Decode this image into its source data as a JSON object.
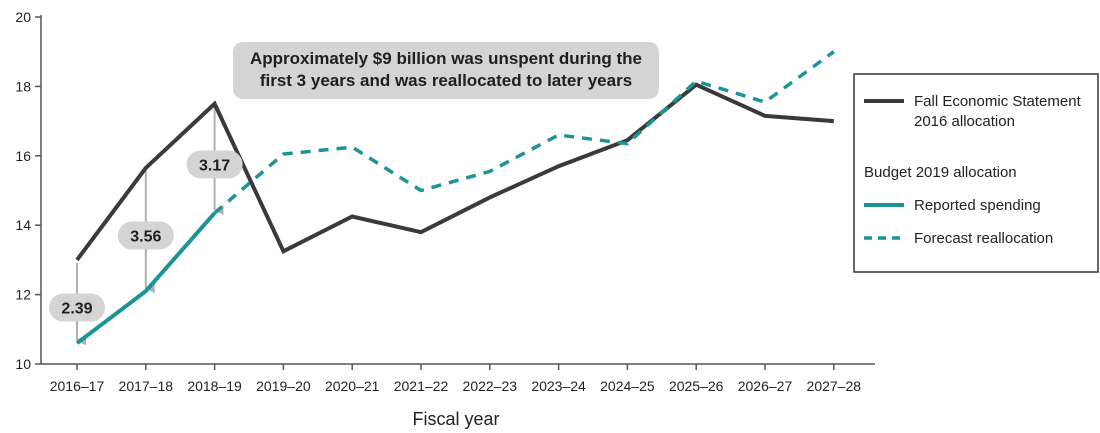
{
  "chart_data": {
    "type": "line",
    "xlabel": "Fiscal year",
    "ylabel": "",
    "ylim": [
      10,
      20
    ],
    "yticks": [
      10,
      12,
      14,
      16,
      18,
      20
    ],
    "categories": [
      "2016–17",
      "2017–18",
      "2018–19",
      "2019–20",
      "2020–21",
      "2021–22",
      "2022–23",
      "2023–24",
      "2024–25",
      "2025–26",
      "2026–27",
      "2027–28"
    ],
    "series": [
      {
        "name": "Fall Economic Statement 2016 allocation",
        "style": "solid",
        "color": "#3a3a3a",
        "values": [
          13.0,
          15.65,
          17.5,
          13.25,
          14.25,
          13.8,
          14.8,
          15.7,
          16.45,
          18.05,
          17.15,
          17.0
        ]
      },
      {
        "name": "Reported spending",
        "style": "solid",
        "color": "#1a9494",
        "values": [
          10.6,
          12.1,
          14.35,
          null,
          null,
          null,
          null,
          null,
          null,
          null,
          null,
          null
        ]
      },
      {
        "name": "Forecast reallocation",
        "style": "dashed",
        "color": "#1a9494",
        "values": [
          null,
          null,
          14.35,
          16.05,
          16.25,
          15.0,
          15.55,
          16.6,
          16.35,
          18.15,
          17.55,
          19.0
        ]
      }
    ],
    "differences": [
      {
        "category": "2016–17",
        "label": "2.39"
      },
      {
        "category": "2017–18",
        "label": "3.56"
      },
      {
        "category": "2018–19",
        "label": "3.17"
      }
    ],
    "annotation": [
      "Approximately $9 billion was unspent during the",
      "first 3 years and was reallocated to later years"
    ],
    "legend": {
      "placement": "right",
      "items": [
        {
          "lines": [
            "Fall Economic Statement",
            "2016 allocation"
          ],
          "swatch": "solid",
          "color": "#3a3a3a"
        },
        {
          "lines": [
            "Budget 2019 allocation"
          ],
          "swatch": "none"
        },
        {
          "lines": [
            "Reported spending"
          ],
          "swatch": "solid",
          "color": "#1a9494"
        },
        {
          "lines": [
            "Forecast reallocation"
          ],
          "swatch": "dashed",
          "color": "#1a9494"
        }
      ]
    },
    "grid": false
  },
  "colors": {
    "axis": "#555555",
    "arrow": "#b0b0b0",
    "bubble": "#d4d4d4"
  }
}
